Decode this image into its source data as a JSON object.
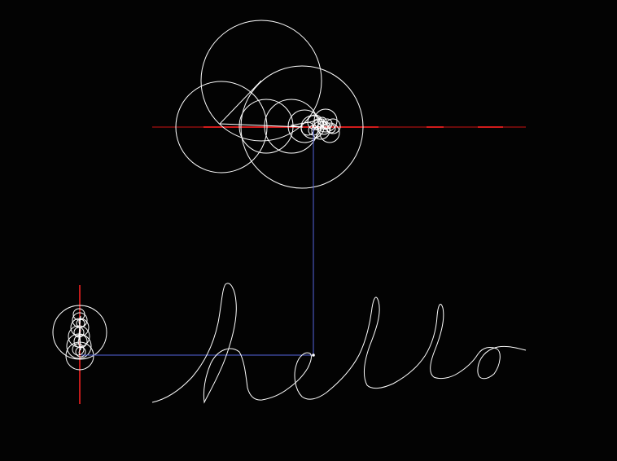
{
  "canvas": {
    "background": "#030303"
  },
  "colors": {
    "circles": "#ffffff",
    "arms": "#ffffff",
    "drawing": "#ffffff",
    "axis_bright": "#ff2222",
    "axis_dark": "#8a0d0d",
    "guide": "#5566dd"
  },
  "components": {
    "horizontal_epicycles": "x-component",
    "vertical_epicycles": "y-component",
    "traced_path": "hello-curve"
  }
}
